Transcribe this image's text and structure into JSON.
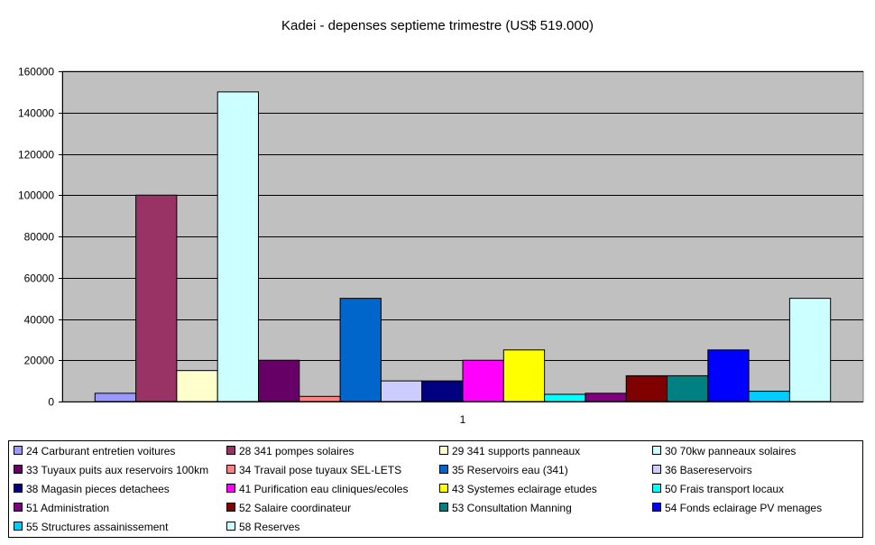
{
  "chart_data": {
    "type": "bar",
    "title": "Kadei - depenses septieme trimestre (US$ 519.000)",
    "xlabel": "",
    "ylabel": "",
    "categories": [
      "1"
    ],
    "ylim": [
      0,
      160000
    ],
    "yticks": [
      "0",
      "20000",
      "40000",
      "60000",
      "80000",
      "100000",
      "120000",
      "140000",
      "160000"
    ],
    "grid": true,
    "legend_position": "bottom",
    "series": [
      {
        "name": "24 Carburant entretien voitures",
        "values": [
          4000
        ],
        "color": "#9999ff"
      },
      {
        "name": "28 341 pompes solaires",
        "values": [
          100000
        ],
        "color": "#993366"
      },
      {
        "name": "29 341 supports panneaux",
        "values": [
          15000
        ],
        "color": "#ffffcc"
      },
      {
        "name": "30 70kw panneaux solaires",
        "values": [
          150000
        ],
        "color": "#ccffff"
      },
      {
        "name": "33 Tuyaux puits aux reservoirs 100km",
        "values": [
          20000
        ],
        "color": "#660066"
      },
      {
        "name": "34 Travail pose tuyaux SEL-LETS",
        "values": [
          2500
        ],
        "color": "#ff8080"
      },
      {
        "name": "35 Reservoirs eau (341)",
        "values": [
          50000
        ],
        "color": "#0066cc"
      },
      {
        "name": "36 Basereservoirs",
        "values": [
          10000
        ],
        "color": "#ccccff"
      },
      {
        "name": "38 Magasin pieces detachees",
        "values": [
          10000
        ],
        "color": "#000080"
      },
      {
        "name": "41 Purification eau cliniques/ecoles",
        "values": [
          20000
        ],
        "color": "#ff00ff"
      },
      {
        "name": "43 Systemes eclairage etudes",
        "values": [
          25000
        ],
        "color": "#ffff00"
      },
      {
        "name": "50 Frais transport locaux",
        "values": [
          3500
        ],
        "color": "#00ffff"
      },
      {
        "name": "51 Administration",
        "values": [
          4000
        ],
        "color": "#800080"
      },
      {
        "name": "52 Salaire coordinateur",
        "values": [
          12500
        ],
        "color": "#800000"
      },
      {
        "name": "53 Consultation Manning",
        "values": [
          12500
        ],
        "color": "#008080"
      },
      {
        "name": "54 Fonds eclairage PV menages",
        "values": [
          25000
        ],
        "color": "#0000ff"
      },
      {
        "name": "55 Structures assainissement",
        "values": [
          5000
        ],
        "color": "#00ccff"
      },
      {
        "name": "58 Reserves",
        "values": [
          50000
        ],
        "color": "#ccffff"
      }
    ]
  },
  "colors": {
    "plot_background": "#c0c0c0"
  }
}
